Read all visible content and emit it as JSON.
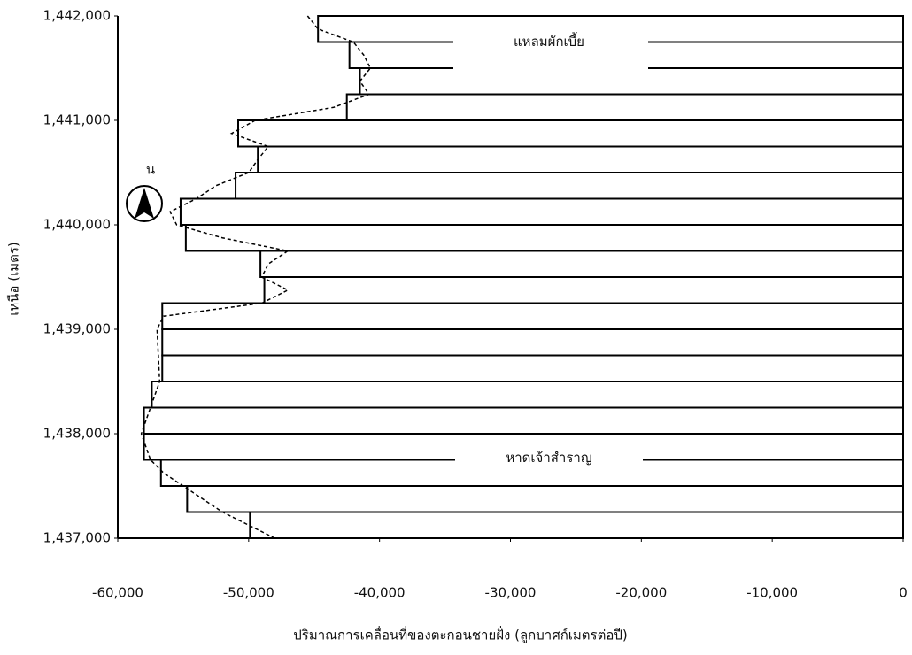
{
  "chart_data": {
    "type": "bar",
    "orientation": "horizontal",
    "x_label": "ปริมาณการเคลื่อนที่ของตะกอนชายฝั่ง (ลูกบาศก์เมตรต่อปี)",
    "y_label": "เหนือ (เมตร)",
    "annotations": [
      "แหลมผักเบี้ย",
      "หาดเจ้าสำราญ"
    ],
    "north_label": "น",
    "y": [
      1441875,
      1441625,
      1441375,
      1441125,
      1440875,
      1440625,
      1440375,
      1440125,
      1439875,
      1439625,
      1439375,
      1439125,
      1438875,
      1438625,
      1438375,
      1438125,
      1437875,
      1437625,
      1437375,
      1437125
    ],
    "values": [
      -44700,
      -42300,
      -41500,
      -42500,
      -50800,
      -49300,
      -51000,
      -55200,
      -54800,
      -49100,
      -48800,
      -56600,
      -56600,
      -56600,
      -57400,
      -58000,
      -58000,
      -56700,
      -54700,
      -49900
    ],
    "color": "#ffffff",
    "trend": {
      "style": "dashed",
      "color": "#000000",
      "y": [
        1442000,
        1441875,
        1441750,
        1441625,
        1441500,
        1441375,
        1441250,
        1441125,
        1441000,
        1440875,
        1440750,
        1440625,
        1440500,
        1440375,
        1440250,
        1440125,
        1440000,
        1439875,
        1439750,
        1439625,
        1439500,
        1439375,
        1439250,
        1439125,
        1439000,
        1438500,
        1438250,
        1438000,
        1437750,
        1437625,
        1437500,
        1437250,
        1437000
      ],
      "values": [
        -45500,
        -44700,
        -42000,
        -41200,
        -40700,
        -41500,
        -40800,
        -43500,
        -49500,
        -51300,
        -48500,
        -49300,
        -50000,
        -52500,
        -54000,
        -56000,
        -55500,
        -52000,
        -47000,
        -48500,
        -49000,
        -47000,
        -49000,
        -56500,
        -57000,
        -56800,
        -57500,
        -58200,
        -57500,
        -56500,
        -55000,
        -52000,
        -48000
      ]
    },
    "xlim": [
      -60000,
      0
    ],
    "xticks": [
      {
        "value": -60000,
        "label": "-60,000"
      },
      {
        "value": -50000,
        "label": "-50,000"
      },
      {
        "value": -40000,
        "label": "-40,000"
      },
      {
        "value": -30000,
        "label": "-30,000"
      },
      {
        "value": -20000,
        "label": "-20,000"
      },
      {
        "value": -10000,
        "label": "-10,000"
      },
      0
    ],
    "ylim": [
      1437000,
      1442000
    ],
    "yticks": [
      {
        "value": 1437000,
        "label": "1,437,000"
      },
      {
        "value": 1438000,
        "label": "1,438,000"
      },
      {
        "value": 1439000,
        "label": "1,439,000"
      },
      {
        "value": 1440000,
        "label": "1,440,000"
      },
      {
        "value": 1441000,
        "label": "1,441,000"
      },
      {
        "value": 1442000,
        "label": "1,442,000"
      }
    ],
    "grid": false
  }
}
